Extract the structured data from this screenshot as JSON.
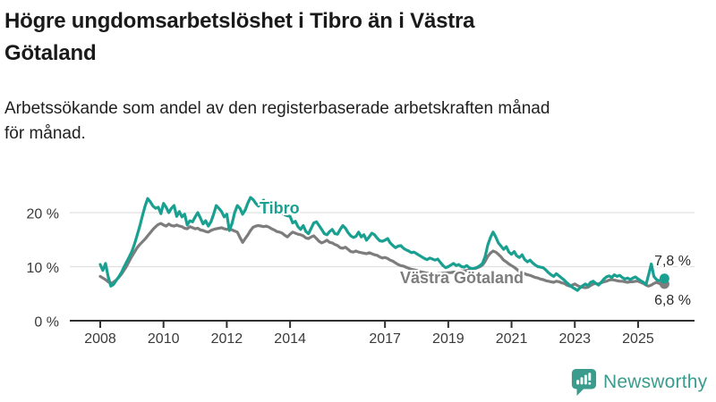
{
  "header": {
    "title": "Högre ungdomsarbetslöshet i Tibro än i Västra Götaland",
    "title_lines": [
      "Högre ungdomsarbetslöshet i Tibro än i Västra",
      "Götaland"
    ],
    "subtitle": "Arbetssökande som andel av den registerbaserade arbetskraften månad för månad.",
    "subtitle_lines": [
      "Arbetssökande som andel av den registerbaserade arbetskraften månad",
      "för månad."
    ]
  },
  "footer": {
    "brand": "Newsworthy",
    "icon": "newsworthy-speech-bubble-chart-icon",
    "brand_color": "#3b9c8d"
  },
  "chart_data": {
    "type": "line",
    "unit": "%",
    "x_interval": "monthly",
    "x_start_year": 2008,
    "x_end_label": "2025",
    "xticks": [
      2008,
      2010,
      2012,
      2014,
      2017,
      2019,
      2021,
      2023,
      2025
    ],
    "yticks": {
      "values": [
        0,
        10,
        20
      ],
      "labels": [
        "0 %",
        "10 %",
        "20 %"
      ]
    },
    "ylim": [
      0,
      24
    ],
    "grid": true,
    "grid_color": "#e0e0e0",
    "axis_color": "#2f2f2f",
    "legend_position": "inline-labels",
    "series": [
      {
        "name": "Tibro",
        "color": "#19a091",
        "end_label": "7,8 %",
        "end_value": 7.8,
        "values": [
          10.4,
          9.3,
          10.6,
          8.2,
          6.4,
          6.7,
          7.4,
          8.1,
          8.9,
          9.9,
          10.9,
          11.8,
          12.8,
          14.2,
          15.8,
          17.5,
          19.4,
          21.2,
          22.6,
          22.0,
          21.2,
          20.8,
          21.0,
          19.8,
          21.7,
          21.0,
          20.0,
          20.8,
          21.3,
          19.3,
          20.2,
          19.2,
          19.7,
          17.7,
          18.5,
          18.3,
          19.2,
          20.0,
          19.0,
          17.9,
          18.5,
          17.5,
          18.3,
          19.7,
          21.3,
          20.8,
          20.2,
          19.2,
          19.7,
          16.7,
          18.0,
          20.0,
          21.3,
          20.8,
          19.7,
          20.5,
          21.8,
          22.8,
          22.4,
          21.7,
          21.2,
          21.9,
          22.3,
          21.5,
          22.1,
          21.4,
          20.8,
          21.2,
          20.4,
          19.9,
          19.6,
          19.4,
          19.3,
          18.1,
          18.4,
          17.4,
          16.9,
          17.6,
          16.5,
          16.1,
          17.1,
          18.1,
          18.3,
          17.6,
          16.9,
          16.1,
          15.9,
          16.5,
          16.9,
          16.1,
          16.0,
          16.9,
          17.6,
          17.1,
          16.3,
          15.7,
          15.4,
          15.6,
          16.4,
          15.5,
          15.9,
          14.9,
          15.5,
          16.2,
          15.9,
          15.3,
          14.8,
          14.7,
          14.9,
          15.2,
          14.4,
          13.9,
          13.5,
          13.8,
          13.9,
          13.4,
          13.1,
          12.9,
          12.6,
          12.7,
          12.4,
          12.1,
          11.8,
          11.5,
          11.3,
          11.6,
          11.4,
          11.2,
          11.4,
          10.8,
          10.2,
          9.8,
          10.0,
          10.3,
          10.6,
          10.2,
          10.4,
          10.0,
          9.9,
          10.2,
          9.8,
          9.6,
          9.7,
          9.9,
          10.2,
          10.6,
          11.9,
          14.0,
          15.4,
          16.4,
          15.5,
          14.4,
          13.8,
          13.2,
          13.7,
          12.7,
          12.3,
          12.8,
          12.0,
          11.7,
          12.2,
          11.3,
          10.9,
          11.2,
          10.7,
          10.3,
          10.0,
          9.9,
          9.8,
          9.4,
          8.9,
          8.5,
          8.2,
          8.7,
          8.3,
          7.9,
          7.5,
          7.0,
          6.6,
          6.2,
          5.9,
          5.6,
          6.1,
          6.5,
          6.8,
          6.5,
          7.1,
          7.3,
          6.9,
          6.6,
          7.1,
          7.7,
          8.1,
          8.3,
          8.0,
          8.5,
          8.2,
          8.4,
          8.0,
          7.7,
          7.9,
          7.6,
          7.9,
          8.1,
          7.7,
          7.4,
          7.1,
          6.7,
          8.5,
          10.5,
          8.2,
          7.6,
          7.4,
          7.5,
          7.8
        ]
      },
      {
        "name": "Västra Götaland",
        "color": "#7d7d7d",
        "end_label": "6,8 %",
        "end_value": 6.8,
        "values": [
          8.2,
          7.9,
          7.6,
          7.2,
          6.9,
          7.1,
          7.5,
          8.0,
          8.6,
          9.3,
          10.1,
          11.0,
          11.9,
          12.7,
          13.5,
          14.1,
          14.6,
          15.1,
          15.7,
          16.3,
          16.9,
          17.4,
          17.8,
          18.0,
          17.7,
          17.5,
          17.9,
          17.6,
          17.5,
          17.7,
          17.5,
          17.4,
          17.1,
          17.0,
          17.4,
          17.2,
          17.0,
          17.1,
          16.8,
          16.7,
          16.5,
          16.4,
          16.7,
          16.9,
          17.0,
          17.1,
          17.2,
          17.0,
          16.9,
          17.0,
          16.8,
          16.6,
          16.4,
          15.4,
          14.5,
          15.2,
          15.9,
          16.7,
          17.3,
          17.5,
          17.6,
          17.5,
          17.4,
          17.5,
          17.3,
          17.0,
          16.8,
          16.5,
          16.4,
          16.2,
          15.8,
          15.5,
          16.0,
          16.4,
          16.2,
          16.0,
          15.9,
          15.7,
          15.3,
          15.2,
          15.5,
          15.7,
          15.2,
          14.7,
          14.4,
          14.6,
          14.9,
          14.5,
          14.4,
          14.1,
          13.9,
          13.5,
          13.4,
          13.6,
          13.2,
          12.8,
          12.7,
          12.9,
          12.7,
          12.6,
          12.5,
          12.4,
          12.6,
          12.4,
          12.2,
          12.1,
          11.8,
          11.6,
          11.7,
          11.5,
          11.2,
          11.0,
          10.7,
          10.4,
          10.2,
          10.1,
          9.9,
          9.7,
          9.5,
          9.4,
          9.3,
          9.1,
          9.0,
          8.9,
          8.8,
          8.7,
          8.7,
          8.6,
          8.7,
          8.7,
          8.8,
          8.8,
          8.9,
          8.9,
          9.0,
          9.0,
          9.1,
          9.2,
          9.2,
          9.3,
          9.4,
          9.5,
          9.6,
          9.8,
          10.0,
          10.3,
          11.0,
          11.9,
          12.5,
          12.9,
          12.7,
          12.3,
          11.8,
          11.2,
          10.9,
          10.5,
          10.2,
          9.9,
          9.5,
          9.1,
          8.9,
          8.7,
          8.5,
          8.4,
          8.2,
          8.0,
          7.9,
          7.7,
          7.6,
          7.4,
          7.3,
          7.2,
          7.1,
          7.3,
          7.2,
          7.0,
          6.9,
          6.6,
          6.4,
          6.6,
          6.8,
          6.5,
          6.3,
          6.2,
          6.1,
          6.2,
          6.5,
          6.8,
          6.9,
          6.8,
          7.0,
          7.2,
          7.3,
          7.5,
          7.6,
          7.5,
          7.4,
          7.3,
          7.3,
          7.2,
          7.1,
          7.2,
          7.2,
          7.3,
          7.3,
          7.1,
          6.9,
          6.6,
          6.4,
          6.6,
          6.9,
          7.1,
          6.9,
          6.7,
          6.8
        ]
      }
    ]
  }
}
